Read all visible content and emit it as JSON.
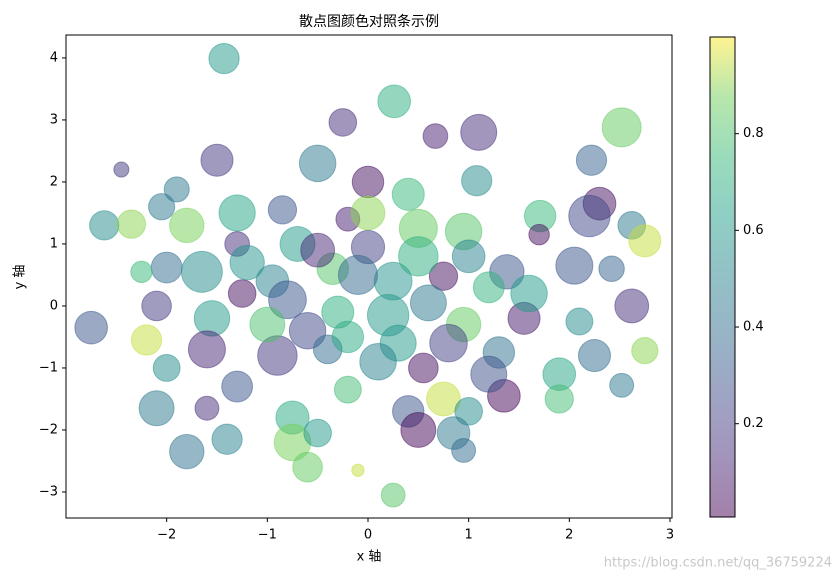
{
  "chart_data": {
    "type": "scatter",
    "title": "散点图颜色对照条示例",
    "x_label": "x 轴",
    "y_label": "y 轴",
    "xlim": [
      -3.0,
      3.02
    ],
    "ylim": [
      -3.42,
      4.37
    ],
    "xticks": [
      {
        "value": -2,
        "label": "−2"
      },
      {
        "value": -1,
        "label": "−1"
      },
      0,
      1,
      2,
      3
    ],
    "yticks": [
      {
        "value": -3,
        "label": "−3"
      },
      {
        "value": -2,
        "label": "−2"
      },
      {
        "value": -1,
        "label": "−1"
      },
      0,
      1,
      2,
      3,
      4
    ],
    "colormap": "viridis",
    "alpha": 0.5,
    "colorbar": {
      "clim": [
        0.007,
        1.0
      ],
      "ticks": [
        0.2,
        0.4,
        0.6,
        0.8
      ]
    },
    "series": [
      {
        "x": [
          -1.43,
          0.26,
          -0.25,
          2.52,
          1.1,
          0.67,
          -1.5,
          2.22,
          -0.5,
          -2.45,
          0.0,
          1.08,
          -1.9,
          2.3,
          -2.05,
          -0.85,
          0.4,
          -1.3,
          2.2,
          -2.62,
          -2.35,
          1.71,
          -0.2,
          0.5,
          2.62,
          -1.8,
          2.75,
          -1.3,
          0.95,
          1.7,
          -0.7,
          0.0,
          2.05,
          -2.0,
          -1.65,
          1.38,
          0.75,
          -0.35,
          2.42,
          -2.25,
          0.25,
          1.2,
          -0.95,
          -2.1,
          -2.75,
          2.62,
          -1.25,
          0.6,
          -0.3,
          1.55,
          2.1,
          -1.55,
          0.95,
          -0.6,
          -2.2,
          2.75,
          2.25,
          -1.6,
          0.3,
          1.3,
          -0.9,
          -0.4,
          -2.0,
          0.55,
          1.9,
          -1.3,
          2.52,
          -0.2,
          1.35,
          0.75,
          -2.1,
          -1.6,
          1.9,
          0.4,
          -0.75,
          1.0,
          -1.4,
          -0.75,
          0.5,
          0.85,
          -0.5,
          -1.8,
          0.95,
          -0.6,
          -0.1,
          0.25,
          0.2,
          -0.1,
          0.5,
          -0.8,
          0.1,
          1.6,
          -1.0,
          0.8,
          -0.5,
          1.0,
          0.0,
          -0.2,
          1.2,
          -1.2
        ],
        "y": [
          3.99,
          3.3,
          2.96,
          2.88,
          2.8,
          2.74,
          2.35,
          2.35,
          2.3,
          2.2,
          2.0,
          2.02,
          1.88,
          1.65,
          1.6,
          1.55,
          1.8,
          1.5,
          1.45,
          1.3,
          1.32,
          1.45,
          1.4,
          1.25,
          1.3,
          1.3,
          1.05,
          1.0,
          1.2,
          1.15,
          1.0,
          0.95,
          0.65,
          0.62,
          0.55,
          0.55,
          0.48,
          0.6,
          0.6,
          0.55,
          0.4,
          0.3,
          0.4,
          0.0,
          -0.35,
          0.0,
          0.2,
          0.05,
          -0.1,
          -0.2,
          -0.25,
          -0.2,
          -0.3,
          -0.4,
          -0.55,
          -0.72,
          -0.8,
          -0.7,
          -0.6,
          -0.75,
          -0.8,
          -0.7,
          -1.0,
          -1.0,
          -1.1,
          -1.3,
          -1.28,
          -1.35,
          -1.45,
          -1.5,
          -1.65,
          -1.65,
          -1.5,
          -1.7,
          -1.8,
          -1.7,
          -2.15,
          -2.2,
          -2.0,
          -2.05,
          -2.05,
          -2.35,
          -2.33,
          -2.6,
          -2.65,
          -3.05,
          -0.15,
          0.5,
          0.8,
          0.1,
          -0.9,
          0.2,
          -0.3,
          -0.6,
          0.9,
          0.8,
          1.5,
          -0.5,
          -1.1,
          0.7
        ],
        "sizes": [
          480,
          560,
          400,
          800,
          680,
          320,
          540,
          480,
          700,
          120,
          520,
          480,
          330,
          560,
          360,
          420,
          540,
          690,
          900,
          450,
          420,
          520,
          300,
          760,
          400,
          620,
          540,
          320,
          700,
          220,
          640,
          580,
          720,
          500,
          880,
          620,
          420,
          520,
          340,
          240,
          750,
          500,
          560,
          460,
          560,
          600,
          400,
          680,
          540,
          540,
          380,
          660,
          620,
          700,
          480,
          360,
          540,
          720,
          680,
          520,
          820,
          430,
          380,
          460,
          560,
          500,
          300,
          380,
          560,
          600,
          640,
          300,
          420,
          520,
          580,
          400,
          480,
          700,
          640,
          560,
          400,
          620,
          300,
          460,
          80,
          300,
          900,
          800,
          820,
          750,
          700,
          700,
          640,
          740,
          600,
          560,
          600,
          520,
          680,
          620
        ],
        "colors": [
          0.6,
          0.7,
          0.15,
          0.85,
          0.15,
          0.1,
          0.18,
          0.35,
          0.45,
          0.2,
          0.05,
          0.55,
          0.45,
          0.05,
          0.45,
          0.3,
          0.75,
          0.65,
          0.25,
          0.55,
          0.9,
          0.75,
          0.1,
          0.85,
          0.45,
          0.88,
          0.95,
          0.15,
          0.82,
          0.05,
          0.62,
          0.22,
          0.3,
          0.4,
          0.55,
          0.3,
          0.05,
          0.82,
          0.35,
          0.75,
          0.58,
          0.72,
          0.5,
          0.2,
          0.3,
          0.15,
          0.05,
          0.45,
          0.7,
          0.08,
          0.55,
          0.6,
          0.85,
          0.25,
          0.95,
          0.9,
          0.4,
          0.12,
          0.6,
          0.42,
          0.18,
          0.4,
          0.55,
          0.05,
          0.65,
          0.3,
          0.45,
          0.78,
          0.02,
          0.95,
          0.45,
          0.15,
          0.78,
          0.3,
          0.68,
          0.55,
          0.5,
          0.88,
          0.02,
          0.45,
          0.6,
          0.42,
          0.4,
          0.85,
          0.95,
          0.82,
          0.6,
          0.38,
          0.7,
          0.3,
          0.5,
          0.62,
          0.8,
          0.22,
          0.12,
          0.5,
          0.9,
          0.68,
          0.28,
          0.58
        ]
      }
    ],
    "watermark": "https://blog.csdn.net/qq_36759224"
  }
}
